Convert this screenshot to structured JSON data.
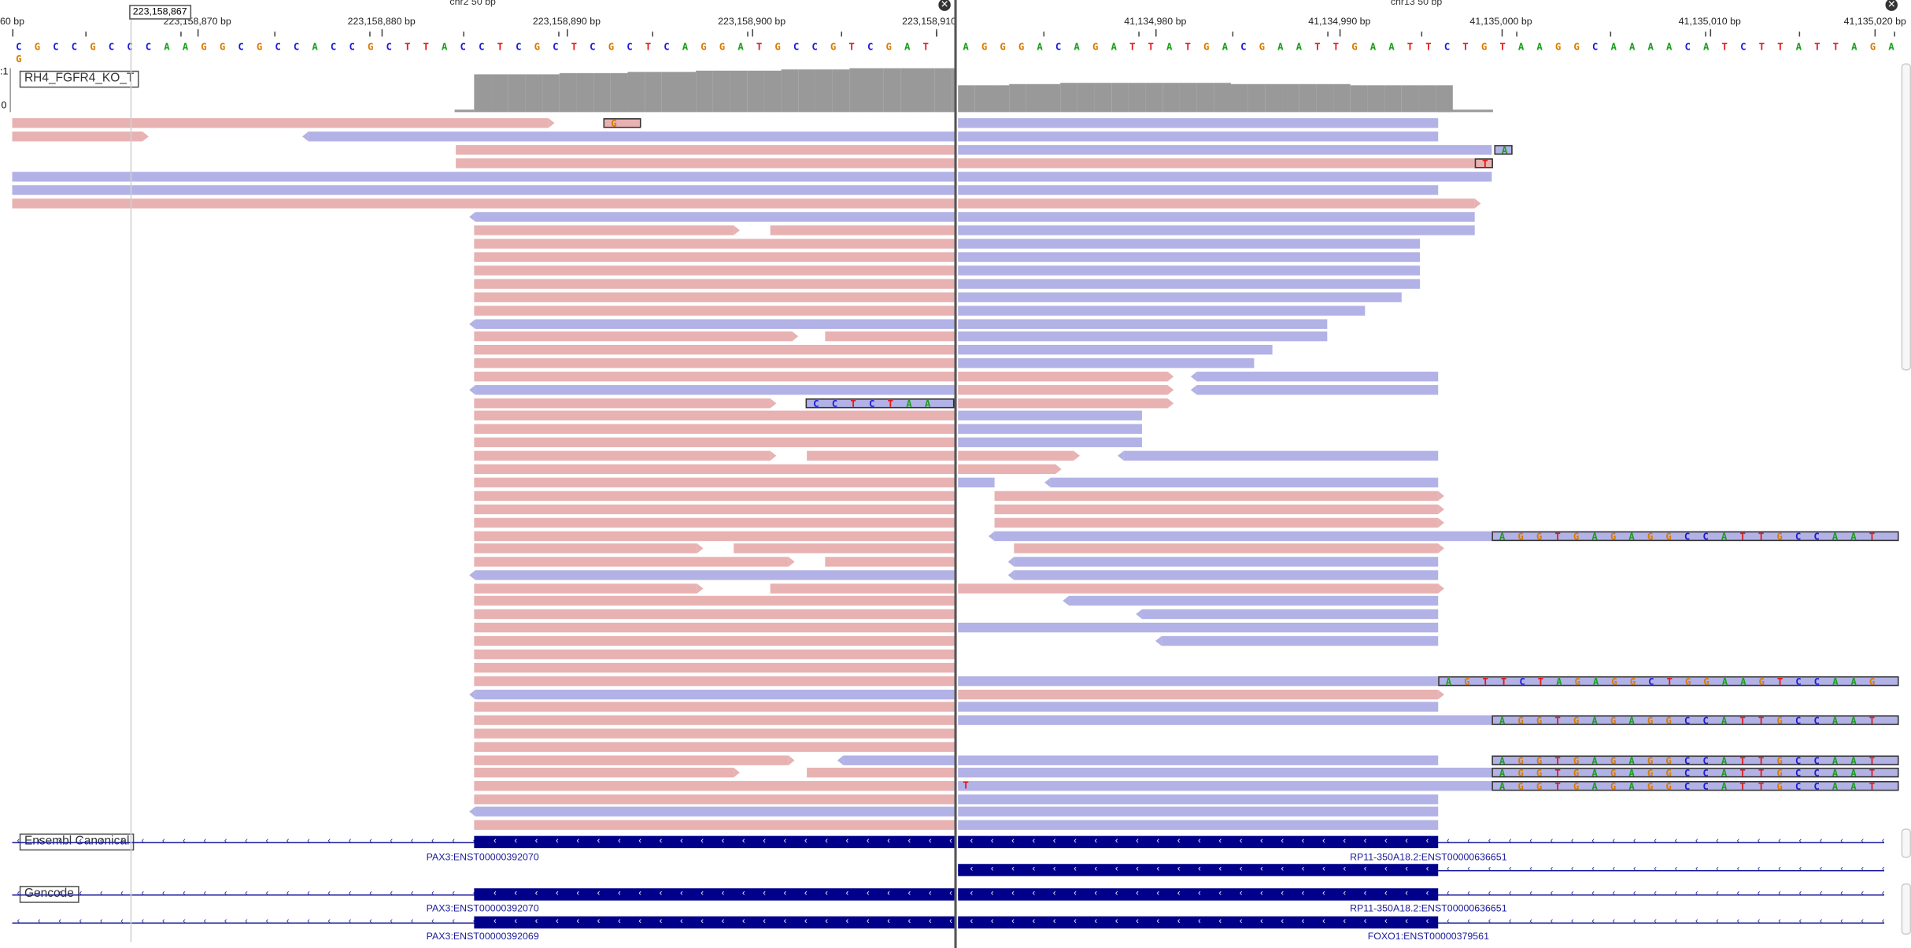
{
  "left_panel": {
    "locus_label": "chr2    50 bp",
    "ruler_labels": [
      {
        "text": "60 bp",
        "pos": 0.0
      },
      {
        "text": "223,158,870 bp",
        "pos": 0.196
      },
      {
        "text": "223,158,880 bp",
        "pos": 0.391
      },
      {
        "text": "223,158,890 bp",
        "pos": 0.587
      },
      {
        "text": "223,158,900 bp",
        "pos": 0.783
      },
      {
        "text": "223,158,910 bp",
        "pos": 0.978
      }
    ],
    "sequence": "CGCCGCCCAAGGCGCCACCGCTTACCTCGCTCGCTCAGGATGCCGTCGATG",
    "coverage_label": "RH4_FGFR4_KO_T",
    "coverage_scale_top": ":1",
    "coverage_scale_bottom": "0",
    "genes": {
      "ensembl_track": "Ensembl Canonical",
      "gencode_track": "Gencode",
      "ensembl_gene": "PAX3:ENST00000392070",
      "gencode_gene_1": "PAX3:ENST00000392070",
      "gencode_gene_2": "PAX3:ENST00000392069"
    },
    "cursor_position": "223,158,867"
  },
  "right_panel": {
    "locus_label": "chr13    50 bp",
    "ruler_labels": [
      {
        "text": "41,134,980 bp",
        "pos": 0.196
      },
      {
        "text": "41,134,990 bp",
        "pos": 0.391
      },
      {
        "text": "41,135,000 bp",
        "pos": 0.562
      },
      {
        "text": "41,135,010 bp",
        "pos": 0.783
      },
      {
        "text": "41,135,020 bp",
        "pos": 0.958
      }
    ],
    "sequence": "AGGGACAGATTATGACGAATTGAATTCTGTAAGGCAAAACATCTTATTAGA",
    "genes": {
      "ensembl_gene": "RP11-350A18.2:ENST00000636651",
      "gencode_gene_1": "RP11-350A18.2:ENST00000636651",
      "gencode_gene_2": "FOXO1:ENST00000379561"
    }
  },
  "softclips": {
    "s1": "GT",
    "s2": "A",
    "s3": "T",
    "s4": "CCTCTAAC",
    "s5": "AGGTGAGAGGCCATTGCCAATG",
    "s6": "AGTTCTAGAGGCTGGAAGTCCAAGA",
    "s7": "AGGTGAGAGGCCATTGCCAATG",
    "s8": "AGGTGAGAGGCCATTGCCAATG",
    "s9": "AGGTGAGAGGCCATTGCCAATG",
    "s10": "AGGTGAGAGGCCATTGCCAATG",
    "mm1": "T"
  },
  "colors": {
    "A": "#1aa01a",
    "C": "#1a1ad8",
    "G": "#d97a00",
    "T": "#e01a1a",
    "forward_read": "#e8b2b2",
    "reverse_read": "#b2b2e6",
    "coverage": "#999999",
    "gene": "#00008b"
  },
  "icons": {
    "close": "close-icon"
  }
}
